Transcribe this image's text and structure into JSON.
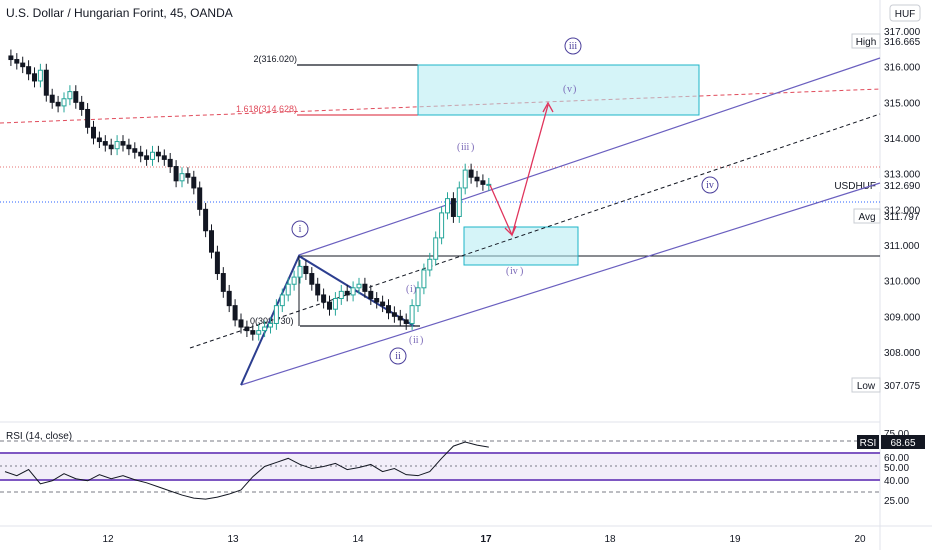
{
  "title": "U.S. Dollar / Hungarian Forint, 45, OANDA",
  "colors": {
    "bull": "#26a69a",
    "bear": "#131722",
    "channel": "#6a5fbf",
    "target_box": "#b2ebf2",
    "target_border": "#1cb5c7",
    "arrow": "#e0345c",
    "rsi_band": "#7e57c2",
    "fib_red": "#e04a5a"
  },
  "price_axis": {
    "currency": "HUF",
    "ticks": [
      "317.000",
      "316.000",
      "315.000",
      "314.000",
      "313.000",
      "312.000",
      "311.000",
      "310.000",
      "309.000",
      "308.000"
    ],
    "high_label": "High",
    "high_value": "316.665",
    "symbol_label": "USDHUF",
    "last_value": "312.690",
    "avg_label": "Avg",
    "avg_value": "311.797",
    "low_label": "Low",
    "low_value": "307.075"
  },
  "fib": {
    "level2": "2(316.020)",
    "level1618": "1.618(314.628)",
    "level0": "0(308.730)"
  },
  "waves": {
    "i": "i",
    "ii": "ii",
    "iii": "iii",
    "iv": "iv",
    "v": "v"
  },
  "rsi": {
    "label": "RSI (14, close)",
    "badge": "RSI",
    "value": "68.65",
    "ticks": [
      "75.00",
      "60.00",
      "50.00",
      "40.00",
      "25.00"
    ]
  },
  "time_axis": [
    "12",
    "13",
    "14",
    "17",
    "18",
    "19",
    "20"
  ],
  "chart_data": {
    "type": "candlestick",
    "title": "U.S. Dollar / Hungarian Forint, 45, OANDA",
    "y_range": [
      307.0,
      317.2
    ],
    "x_labels": [
      "12",
      "13",
      "14",
      "17",
      "18",
      "19",
      "20"
    ],
    "close_path": [
      [
        0,
        316.3
      ],
      [
        5,
        316.2
      ],
      [
        10,
        316.1
      ],
      [
        15,
        316.0
      ],
      [
        20,
        315.8
      ],
      [
        25,
        315.6
      ],
      [
        30,
        315.9
      ],
      [
        35,
        315.2
      ],
      [
        40,
        315.0
      ],
      [
        45,
        314.9
      ],
      [
        50,
        315.1
      ],
      [
        55,
        315.3
      ],
      [
        60,
        315.0
      ],
      [
        65,
        314.8
      ],
      [
        70,
        314.3
      ],
      [
        75,
        314.0
      ],
      [
        80,
        313.9
      ],
      [
        85,
        313.8
      ],
      [
        90,
        313.7
      ],
      [
        95,
        313.9
      ],
      [
        100,
        313.8
      ],
      [
        105,
        313.7
      ],
      [
        110,
        313.6
      ],
      [
        115,
        313.5
      ],
      [
        120,
        313.4
      ],
      [
        125,
        313.6
      ],
      [
        130,
        313.5
      ],
      [
        135,
        313.4
      ],
      [
        140,
        313.2
      ],
      [
        145,
        312.8
      ],
      [
        150,
        313.0
      ],
      [
        155,
        312.9
      ],
      [
        160,
        312.6
      ],
      [
        165,
        312.0
      ],
      [
        170,
        311.4
      ],
      [
        175,
        310.8
      ],
      [
        180,
        310.2
      ],
      [
        185,
        309.7
      ],
      [
        190,
        309.3
      ],
      [
        195,
        308.9
      ],
      [
        200,
        308.7
      ],
      [
        205,
        308.6
      ],
      [
        210,
        308.5
      ],
      [
        215,
        308.6
      ],
      [
        220,
        308.7
      ],
      [
        225,
        308.8
      ],
      [
        230,
        309.3
      ],
      [
        235,
        309.6
      ],
      [
        240,
        309.9
      ],
      [
        245,
        310.1
      ],
      [
        250,
        310.4
      ],
      [
        255,
        310.2
      ],
      [
        260,
        309.9
      ],
      [
        265,
        309.6
      ],
      [
        270,
        309.4
      ],
      [
        275,
        309.2
      ],
      [
        280,
        309.5
      ],
      [
        285,
        309.7
      ],
      [
        290,
        309.6
      ],
      [
        295,
        309.8
      ],
      [
        300,
        309.9
      ],
      [
        305,
        309.7
      ],
      [
        310,
        309.5
      ],
      [
        315,
        309.4
      ],
      [
        320,
        309.3
      ],
      [
        325,
        309.1
      ],
      [
        330,
        309.0
      ],
      [
        335,
        308.9
      ],
      [
        340,
        308.8
      ],
      [
        345,
        309.3
      ],
      [
        350,
        309.8
      ],
      [
        355,
        310.3
      ],
      [
        360,
        310.6
      ],
      [
        365,
        311.2
      ],
      [
        370,
        311.9
      ],
      [
        375,
        312.3
      ],
      [
        380,
        311.8
      ],
      [
        385,
        312.6
      ],
      [
        390,
        313.1
      ],
      [
        395,
        312.9
      ],
      [
        400,
        312.8
      ],
      [
        405,
        312.7
      ],
      [
        410,
        312.7
      ]
    ],
    "rsi_range": [
      0,
      100
    ],
    "rsi_levels": [
      75,
      60,
      50,
      40,
      25
    ],
    "rsi_path": [
      [
        0,
        45
      ],
      [
        10,
        41
      ],
      [
        20,
        47
      ],
      [
        30,
        33
      ],
      [
        40,
        36
      ],
      [
        50,
        43
      ],
      [
        60,
        38
      ],
      [
        70,
        36
      ],
      [
        80,
        42
      ],
      [
        90,
        38
      ],
      [
        100,
        41
      ],
      [
        110,
        37
      ],
      [
        120,
        34
      ],
      [
        130,
        30
      ],
      [
        140,
        26
      ],
      [
        150,
        22
      ],
      [
        160,
        19
      ],
      [
        170,
        18
      ],
      [
        180,
        20
      ],
      [
        190,
        23
      ],
      [
        200,
        27
      ],
      [
        210,
        40
      ],
      [
        220,
        50
      ],
      [
        230,
        54
      ],
      [
        240,
        58
      ],
      [
        250,
        52
      ],
      [
        260,
        48
      ],
      [
        270,
        50
      ],
      [
        280,
        53
      ],
      [
        290,
        47
      ],
      [
        300,
        49
      ],
      [
        310,
        52
      ],
      [
        320,
        45
      ],
      [
        330,
        48
      ],
      [
        340,
        42
      ],
      [
        350,
        41
      ],
      [
        360,
        45
      ],
      [
        370,
        58
      ],
      [
        380,
        70
      ],
      [
        390,
        74
      ],
      [
        400,
        71
      ],
      [
        410,
        69
      ]
    ]
  }
}
